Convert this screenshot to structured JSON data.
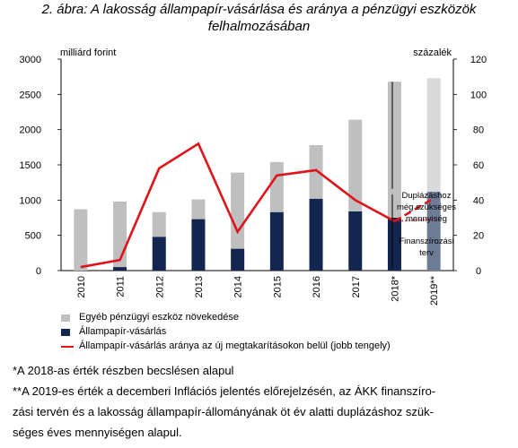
{
  "title_line1": "2. ábra: A lakosság állampapír-vásárlása és aránya a pénzügyi eszközök",
  "title_line2": "felhalmozásában",
  "chart_data": {
    "type": "bar",
    "categories": [
      "2010",
      "2011",
      "2012",
      "2013",
      "2014",
      "2015",
      "2016",
      "2017",
      "2018*",
      "2019**"
    ],
    "left_axis": {
      "label": "milliárd forint",
      "min": 0,
      "max": 3000,
      "ticks": [
        0,
        500,
        1000,
        1500,
        2000,
        2500,
        3000
      ]
    },
    "right_axis": {
      "label": "százalék",
      "min": 0,
      "max": 120,
      "ticks": [
        0,
        20,
        40,
        60,
        80,
        100,
        120
      ]
    },
    "series": [
      {
        "name": "Egyéb pénzügyi eszköz növekedése",
        "type": "stacked-bar",
        "color": "#bfbfbf",
        "values": [
          870,
          930,
          350,
          280,
          1080,
          710,
          760,
          1300,
          1930,
          null
        ]
      },
      {
        "name": "Állampapír-vásárlás",
        "type": "stacked-bar",
        "color": "#13264f",
        "values": [
          0,
          50,
          480,
          730,
          310,
          830,
          1020,
          840,
          750,
          null
        ]
      },
      {
        "name": "Állampapír-vásárlás aránya az új megtakarításokon belül (jobb tengely)",
        "type": "line",
        "axis": "right",
        "color": "#e0131b",
        "values": [
          2,
          6,
          58,
          72,
          22,
          54,
          57,
          40,
          28,
          null
        ]
      }
    ],
    "projection_2019": {
      "bar_lower": {
        "value": 1120,
        "color": "#6d7b94"
      },
      "bar_upper": {
        "value": 1610,
        "color": "#d9d9d9"
      },
      "ratio_dashed_to": 41,
      "ratio_dotted_to": 29,
      "annotation_upper": [
        "Duplázáshoz",
        "még szükséges",
        "mennyiség"
      ],
      "annotation_lower": [
        "Finanszírozási",
        "terv"
      ]
    }
  },
  "notes": [
    "*A 2018-as érték részben becslésen alapul",
    "**A 2019-es érték a decemberi Inflációs jelentés előrejelzésén, az ÁKK finanszíro-",
    "zási tervén és a lakosság állampapír-állományának öt év alatti duplázáshoz szük-",
    "séges éves mennyiségen alapul."
  ]
}
